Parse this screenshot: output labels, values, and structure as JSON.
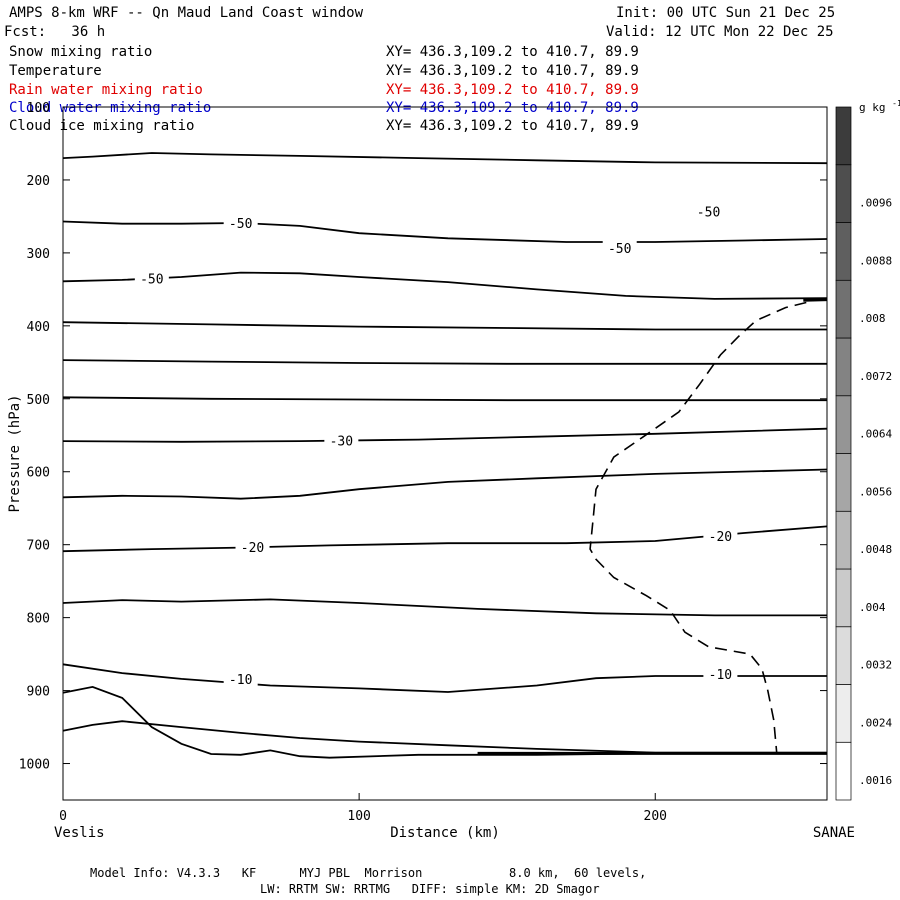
{
  "header": {
    "title": "AMPS 8-km WRF -- Qn Maud Land Coast window",
    "init": "Init: 00 UTC Sun 21 Dec 25",
    "fcst": "Fcst:   36 h",
    "valid": "Valid: 12 UTC Mon 22 Dec 25"
  },
  "fields": [
    {
      "label": "Snow mixing ratio",
      "xy": "XY= 436.3,109.2 to 410.7, 89.9",
      "color": "#000000"
    },
    {
      "label": "Temperature",
      "xy": "XY= 436.3,109.2 to 410.7, 89.9",
      "color": "#000000"
    },
    {
      "label": "Rain water mixing ratio",
      "xy": "XY= 436.3,109.2 to 410.7, 89.9",
      "color": "#e00000"
    },
    {
      "label": "Cloud water mixing ratio",
      "xy": "XY= 436.3,109.2 to 410.7, 89.9",
      "color": "#0000cc"
    },
    {
      "label": "Cloud ice mixing ratio",
      "xy": "XY= 436.3,109.2 to 410.7, 89.9",
      "color": "#000000"
    }
  ],
  "footer": {
    "line1": "Model Info: V4.3.3   KF      MYJ PBL  Morrison            8.0 km,  60 levels,",
    "line2": "LW: RRTM SW: RRTMG   DIFF: simple KM: 2D Smagor"
  },
  "chart_data": {
    "type": "contour",
    "xlabel": "Distance (km)",
    "ylabel": "Pressure (hPa)",
    "xlim": [
      0,
      258
    ],
    "ylim": [
      1050,
      100
    ],
    "x_ticks": [
      0,
      100,
      200
    ],
    "y_ticks": [
      100,
      200,
      300,
      400,
      500,
      600,
      700,
      800,
      900,
      1000
    ],
    "left_location": "Veslis",
    "right_location": "SANAE",
    "colorbar": {
      "unit": "g kg",
      "unit_exp": "-1",
      "levels": [
        ".0016",
        ".0024",
        ".0032",
        ".004",
        ".0048",
        ".0056",
        ".0064",
        ".0072",
        ".008",
        ".0088",
        ".0096"
      ]
    },
    "isotherms": [
      {
        "points": [
          [
            0,
            170
          ],
          [
            10,
            168
          ],
          [
            30,
            163
          ],
          [
            50,
            165
          ],
          [
            80,
            167
          ],
          [
            120,
            170
          ],
          [
            160,
            173
          ],
          [
            200,
            176
          ],
          [
            258,
            177
          ]
        ]
      },
      {
        "label": "-50",
        "label_at": [
          60,
          259
        ],
        "label2": "-50",
        "label2_at": [
          218,
          243
        ],
        "points": [
          [
            0,
            257
          ],
          [
            20,
            260
          ],
          [
            40,
            260
          ],
          [
            60,
            259
          ],
          [
            80,
            263
          ],
          [
            100,
            273
          ],
          [
            130,
            280
          ],
          [
            170,
            285
          ],
          [
            200,
            285
          ],
          [
            230,
            283
          ],
          [
            258,
            281
          ]
        ]
      },
      {
        "label": "-50",
        "label_at": [
          30,
          335
        ],
        "label2": "-50",
        "label2_at": [
          188,
          293
        ],
        "points": [
          [
            0,
            339
          ],
          [
            20,
            337
          ],
          [
            40,
            333
          ],
          [
            60,
            327
          ],
          [
            80,
            328
          ],
          [
            100,
            333
          ],
          [
            130,
            340
          ],
          [
            160,
            350
          ],
          [
            190,
            359
          ],
          [
            220,
            363
          ],
          [
            258,
            362
          ]
        ]
      },
      {
        "points": [
          [
            0,
            395
          ],
          [
            50,
            398
          ],
          [
            100,
            401
          ],
          [
            150,
            403
          ],
          [
            200,
            405
          ],
          [
            258,
            405
          ]
        ]
      },
      {
        "points": [
          [
            0,
            447
          ],
          [
            50,
            449
          ],
          [
            100,
            451
          ],
          [
            150,
            452
          ],
          [
            200,
            452
          ],
          [
            258,
            452
          ]
        ]
      },
      {
        "points": [
          [
            0,
            498
          ],
          [
            50,
            500
          ],
          [
            100,
            501
          ],
          [
            150,
            502
          ],
          [
            200,
            502
          ],
          [
            258,
            502
          ]
        ]
      },
      {
        "label": "-30",
        "label_at": [
          94,
          557
        ],
        "points": [
          [
            0,
            558
          ],
          [
            40,
            559
          ],
          [
            80,
            558
          ],
          [
            120,
            556
          ],
          [
            160,
            552
          ],
          [
            200,
            548
          ],
          [
            258,
            541
          ]
        ]
      },
      {
        "points": [
          [
            0,
            635
          ],
          [
            20,
            633
          ],
          [
            40,
            634
          ],
          [
            60,
            637
          ],
          [
            80,
            633
          ],
          [
            100,
            624
          ],
          [
            130,
            614
          ],
          [
            160,
            609
          ],
          [
            200,
            603
          ],
          [
            258,
            597
          ]
        ]
      },
      {
        "label": "-20",
        "label_at": [
          64,
          703
        ],
        "label2": "-20",
        "label2_at": [
          222,
          688
        ],
        "points": [
          [
            0,
            709
          ],
          [
            30,
            706
          ],
          [
            60,
            704
          ],
          [
            90,
            701
          ],
          [
            130,
            698
          ],
          [
            170,
            698
          ],
          [
            200,
            695
          ],
          [
            230,
            684
          ],
          [
            258,
            675
          ]
        ]
      },
      {
        "points": [
          [
            0,
            780
          ],
          [
            20,
            776
          ],
          [
            40,
            778
          ],
          [
            70,
            775
          ],
          [
            100,
            780
          ],
          [
            140,
            788
          ],
          [
            180,
            794
          ],
          [
            220,
            797
          ],
          [
            258,
            797
          ]
        ]
      },
      {
        "label": "-10",
        "label_at": [
          60,
          884
        ],
        "label2": "-10",
        "label2_at": [
          222,
          877
        ],
        "points": [
          [
            0,
            864
          ],
          [
            20,
            876
          ],
          [
            40,
            884
          ],
          [
            70,
            893
          ],
          [
            100,
            897
          ],
          [
            130,
            902
          ],
          [
            160,
            893
          ],
          [
            180,
            883
          ],
          [
            200,
            880
          ],
          [
            258,
            880
          ]
        ]
      },
      {
        "points": [
          [
            0,
            955
          ],
          [
            10,
            947
          ],
          [
            20,
            942
          ],
          [
            40,
            950
          ],
          [
            60,
            958
          ],
          [
            80,
            965
          ],
          [
            100,
            970
          ],
          [
            130,
            975
          ],
          [
            160,
            980
          ],
          [
            200,
            985
          ],
          [
            258,
            985
          ]
        ]
      }
    ],
    "terrain": [
      [
        0,
        903
      ],
      [
        10,
        895
      ],
      [
        20,
        910
      ],
      [
        30,
        950
      ],
      [
        40,
        973
      ],
      [
        50,
        987
      ],
      [
        60,
        988
      ],
      [
        70,
        982
      ],
      [
        80,
        990
      ],
      [
        90,
        992
      ],
      [
        120,
        988
      ],
      [
        160,
        988
      ],
      [
        200,
        986
      ],
      [
        258,
        986
      ]
    ],
    "dashed_contour": [
      [
        251,
        368
      ],
      [
        244,
        375
      ],
      [
        234,
        393
      ],
      [
        228,
        415
      ],
      [
        222,
        440
      ],
      [
        215,
        480
      ],
      [
        208,
        518
      ],
      [
        196,
        552
      ],
      [
        186,
        580
      ],
      [
        180,
        624
      ],
      [
        179,
        665
      ],
      [
        178,
        706
      ],
      [
        180,
        720
      ],
      [
        186,
        745
      ],
      [
        197,
        770
      ],
      [
        205,
        790
      ],
      [
        210,
        820
      ],
      [
        218,
        840
      ],
      [
        232,
        850
      ],
      [
        236,
        870
      ],
      [
        238,
        900
      ],
      [
        240,
        940
      ],
      [
        241,
        985
      ]
    ]
  }
}
